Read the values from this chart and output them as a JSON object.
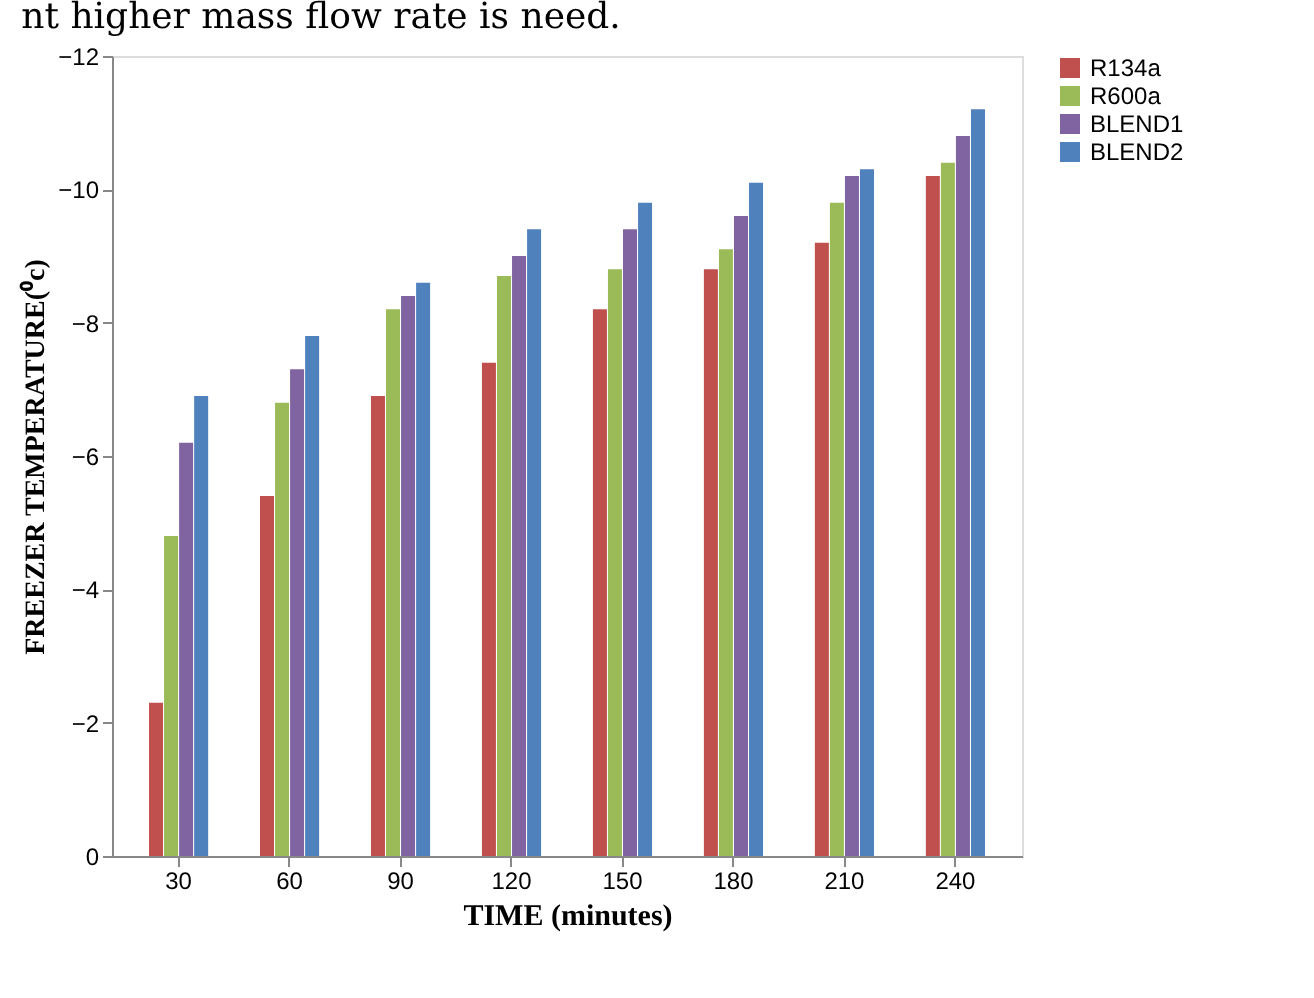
{
  "chart_data": {
    "type": "bar",
    "annotations": [
      "nt higher mass flow rate is need."
    ],
    "xlabel": "TIME (minutes)",
    "ylabel": "FREEZER TEMPERATURE(⁰c)",
    "categories": [
      "30",
      "60",
      "90",
      "120",
      "150",
      "180",
      "210",
      "240"
    ],
    "series": [
      {
        "name": "R134a",
        "color": "#c0504d",
        "values": [
          -2.3,
          -5.4,
          -6.9,
          -7.4,
          -8.2,
          -8.8,
          -9.2,
          -10.2
        ]
      },
      {
        "name": "R600a",
        "color": "#9bbb59",
        "values": [
          -4.8,
          -6.8,
          -8.2,
          -8.7,
          -8.8,
          -9.1,
          -9.8,
          -10.4
        ]
      },
      {
        "name": "BLEND1",
        "color": "#8064a2",
        "values": [
          -6.2,
          -7.3,
          -8.4,
          -9.0,
          -9.4,
          -9.6,
          -10.2,
          -10.8
        ]
      },
      {
        "name": "BLEND2",
        "color": "#4f81bd",
        "values": [
          -6.9,
          -7.8,
          -8.6,
          -9.4,
          -9.8,
          -10.1,
          -10.3,
          -11.2
        ]
      }
    ],
    "ylim": [
      0,
      -12
    ],
    "yticks": [
      0,
      -2,
      -4,
      -6,
      -8,
      -10,
      -12
    ],
    "grid": false,
    "legend": "right"
  }
}
